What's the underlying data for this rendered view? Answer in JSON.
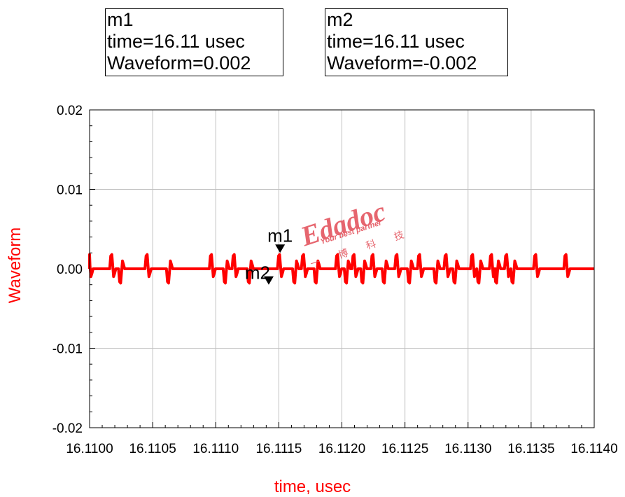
{
  "markers": [
    {
      "name": "m1",
      "time_text": "time=16.11 usec",
      "value_text": "Waveform=0.002",
      "x": 16.11151,
      "y": 0.002
    },
    {
      "name": "m2",
      "time_text": "time=16.11 usec",
      "value_text": "Waveform=-0.002",
      "x": 16.11142,
      "y": -0.002
    }
  ],
  "watermark": {
    "brand": "Edadoc",
    "tagline": "Your best partner",
    "cn": "一 博 科 技"
  },
  "colors": {
    "trace": "#ff0000",
    "axis_label": "#ff0000",
    "grid": "#c0c0c0"
  },
  "chart_data": {
    "type": "line",
    "xlabel": "time, usec",
    "ylabel": "Waveform",
    "xlim": [
      16.11,
      16.114
    ],
    "ylim": [
      -0.02,
      0.02
    ],
    "x_ticks": [
      "16.1100",
      "16.1105",
      "16.1110",
      "16.1115",
      "16.1120",
      "16.1125",
      "16.1130",
      "16.1135",
      "16.1140"
    ],
    "y_ticks": [
      "0.02",
      "0.01",
      "0.00",
      "-0.01",
      "-0.02"
    ],
    "grid": true,
    "series": [
      {
        "color": "#ff0000",
        "baseline": 0.0,
        "pulses": [
          {
            "t": 16.11,
            "dir": 1
          },
          {
            "t": 16.11018,
            "dir": 1
          },
          {
            "t": 16.11025,
            "dir": -1
          },
          {
            "t": 16.11046,
            "dir": 1
          },
          {
            "t": 16.11063,
            "dir": -1
          },
          {
            "t": 16.11097,
            "dir": 1
          },
          {
            "t": 16.11108,
            "dir": -1
          },
          {
            "t": 16.11115,
            "dir": 1
          },
          {
            "t": 16.11127,
            "dir": -1
          },
          {
            "t": 16.11151,
            "dir": 1
          },
          {
            "t": 16.11163,
            "dir": -1
          },
          {
            "t": 16.1117,
            "dir": 1
          },
          {
            "t": 16.1118,
            "dir": -1
          },
          {
            "t": 16.11197,
            "dir": 1
          },
          {
            "t": 16.11204,
            "dir": -1
          },
          {
            "t": 16.1121,
            "dir": 1
          },
          {
            "t": 16.11217,
            "dir": -1
          },
          {
            "t": 16.11225,
            "dir": 1
          },
          {
            "t": 16.11234,
            "dir": -1
          },
          {
            "t": 16.11244,
            "dir": 1
          },
          {
            "t": 16.11254,
            "dir": -1
          },
          {
            "t": 16.11262,
            "dir": 1
          },
          {
            "t": 16.11275,
            "dir": -1
          },
          {
            "t": 16.11283,
            "dir": 1
          },
          {
            "t": 16.1129,
            "dir": -1
          },
          {
            "t": 16.11304,
            "dir": 1
          },
          {
            "t": 16.11309,
            "dir": -1
          },
          {
            "t": 16.11319,
            "dir": 1
          },
          {
            "t": 16.11323,
            "dir": -1
          },
          {
            "t": 16.11331,
            "dir": 1
          },
          {
            "t": 16.11336,
            "dir": -1
          },
          {
            "t": 16.11354,
            "dir": 1
          },
          {
            "t": 16.11378,
            "dir": 1
          }
        ],
        "pulse_amplitude": 0.0018
      }
    ]
  }
}
